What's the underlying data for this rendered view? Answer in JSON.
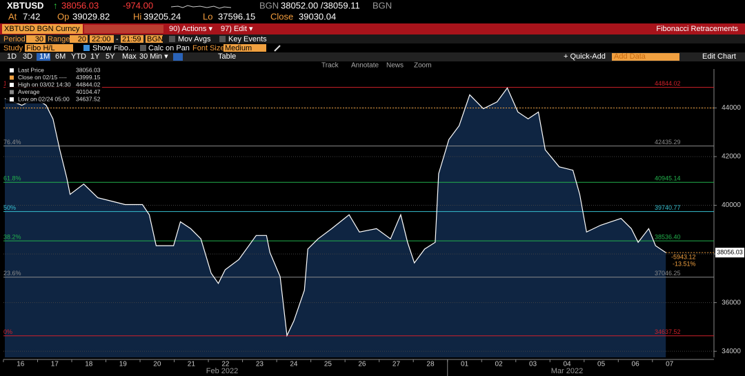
{
  "header": {
    "ticker": "XBTUSD",
    "arrow": "↑",
    "last": "38056.03",
    "change": "-974.00",
    "src1": "BGN",
    "bidask": "38052.00 /38059.11",
    "src2": "BGN",
    "at_label": "At",
    "at": "7:42",
    "op_label": "Op",
    "op": "39029.82",
    "hi_label": "Hi",
    "hi": "39205.24",
    "lo_label": "Lo",
    "lo": "37596.15",
    "close_label": "Close",
    "close": "39030.04"
  },
  "toolbar": {
    "security": "XBTUSD BGN Curncy",
    "actions": "90) Actions ▾",
    "edit": "97) Edit ▾",
    "function": "Fibonacci Retracements",
    "period_label": "Period",
    "period": "30",
    "range_label": "Range",
    "range": "20",
    "start": "22:00",
    "dash": "-",
    "end": "21:59",
    "source": "BGN",
    "mov_avgs": "Mov Avgs",
    "key_events": "Key Events",
    "study_label": "Study",
    "study": "Fibo H/L",
    "show_fibo": "Show Fibo...",
    "calc_on_pan": "Calc on Pan",
    "font_size_label": "Font Size",
    "font_size": "Medium",
    "ranges": [
      "1D",
      "3D",
      "1M",
      "6M",
      "YTD",
      "1Y",
      "5Y",
      "Max"
    ],
    "interval": "30 Min ▾",
    "table": "Table",
    "quick_add": "+ Quick-Add",
    "add_data": "Add Data",
    "edit_chart": "Edit Chart",
    "tools": [
      "Track",
      "Annotate",
      "News",
      "Zoom"
    ]
  },
  "chart_data": {
    "type": "area",
    "line_color": "#ffffff",
    "fill_color": "#0f2542",
    "x": [
      -0.46,
      0.04,
      0.44,
      0.75,
      0.95,
      1.15,
      1.35,
      1.45,
      1.85,
      2.26,
      2.66,
      3.06,
      3.57,
      3.77,
      3.97,
      4.48,
      4.68,
      4.98,
      5.28,
      5.58,
      5.79,
      5.99,
      6.39,
      6.9,
      7.2,
      7.3,
      7.6,
      7.8,
      8.0,
      8.31,
      8.41,
      8.71,
      9.11,
      9.62,
      9.92,
      10.42,
      10.83,
      11.13,
      11.33,
      11.53,
      11.83,
      12.14,
      12.24,
      12.54,
      12.84,
      13.15,
      13.55,
      13.95,
      14.25,
      14.56,
      14.86,
      15.16,
      15.36,
      15.77,
      16.17,
      16.37,
      16.57,
      16.98,
      17.58,
      17.88,
      18.08,
      18.39,
      18.59,
      18.89
    ],
    "values": [
      44390,
      44110,
      44390,
      44110,
      43550,
      42280,
      41150,
      40450,
      40870,
      40310,
      40170,
      40030,
      40030,
      39610,
      38340,
      38340,
      39320,
      39040,
      38620,
      37210,
      36790,
      37350,
      37770,
      38760,
      38760,
      38060,
      37070,
      34650,
      35240,
      36510,
      38200,
      38620,
      39040,
      39610,
      38900,
      39040,
      38620,
      39610,
      38480,
      37630,
      38200,
      38480,
      41300,
      42700,
      43270,
      44540,
      43970,
      44250,
      44820,
      43830,
      43550,
      43830,
      42280,
      41580,
      41440,
      40450,
      38900,
      39180,
      39460,
      39040,
      38480,
      39040,
      38340,
      38056.03
    ],
    "xlim": [
      -0.5,
      20.3
    ],
    "ylim": [
      33750,
      45600
    ],
    "xticks": [
      {
        "value": 0,
        "label": "16"
      },
      {
        "value": 1,
        "label": "17"
      },
      {
        "value": 2,
        "label": "18"
      },
      {
        "value": 3,
        "label": "19"
      },
      {
        "value": 4,
        "label": "20"
      },
      {
        "value": 5,
        "label": "21"
      },
      {
        "value": 6,
        "label": "22"
      },
      {
        "value": 7,
        "label": "23"
      },
      {
        "value": 8,
        "label": "24"
      },
      {
        "value": 9,
        "label": "25"
      },
      {
        "value": 10,
        "label": "26"
      },
      {
        "value": 11,
        "label": "27"
      },
      {
        "value": 12,
        "label": "28"
      },
      {
        "value": 13,
        "label": "01"
      },
      {
        "value": 14,
        "label": "02"
      },
      {
        "value": 15,
        "label": "03"
      },
      {
        "value": 16,
        "label": "04"
      },
      {
        "value": 17,
        "label": "05"
      },
      {
        "value": 18,
        "label": "06"
      },
      {
        "value": 19,
        "label": "07"
      }
    ],
    "months": [
      "Feb 2022",
      "Mar 2022"
    ],
    "yticks": [
      34000,
      36000,
      38000,
      40000,
      42000,
      44000
    ],
    "grid": true,
    "fib_levels": [
      {
        "name": "100%",
        "value": 44844.02,
        "color": "#d0202a"
      },
      {
        "name": "76.4%",
        "value": 42435.29,
        "color": "#8c8c8c"
      },
      {
        "name": "61.8%",
        "value": 40945.14,
        "color": "#22b14c"
      },
      {
        "name": "50%",
        "value": 39740.77,
        "color": "#36c0d0"
      },
      {
        "name": "38.2%",
        "value": {
          "value": 38536.4,
          "label": "38536.40"
        },
        "color": "#22b14c"
      },
      {
        "name": "23.6%",
        "value": 37046.25,
        "color": "#8c8c8c"
      },
      {
        "name": "0%",
        "value": 34637.52,
        "color": "#d0202a"
      }
    ],
    "ref_close": 43999.15,
    "last_price": 38056.03,
    "diff": "-5943.12",
    "diff_pct": "-13.51%",
    "legend": [
      {
        "name": "Last Price",
        "value": "38056.03"
      },
      {
        "name": "Close on 02/15 ----",
        "value": "43999.15"
      },
      {
        "name": "High on 03/02 14:30",
        "value": "44844.02"
      },
      {
        "name": "Average",
        "value": "40104.47"
      },
      {
        "name": "Low on 02/24 05:00",
        "value": "34637.52"
      }
    ]
  }
}
